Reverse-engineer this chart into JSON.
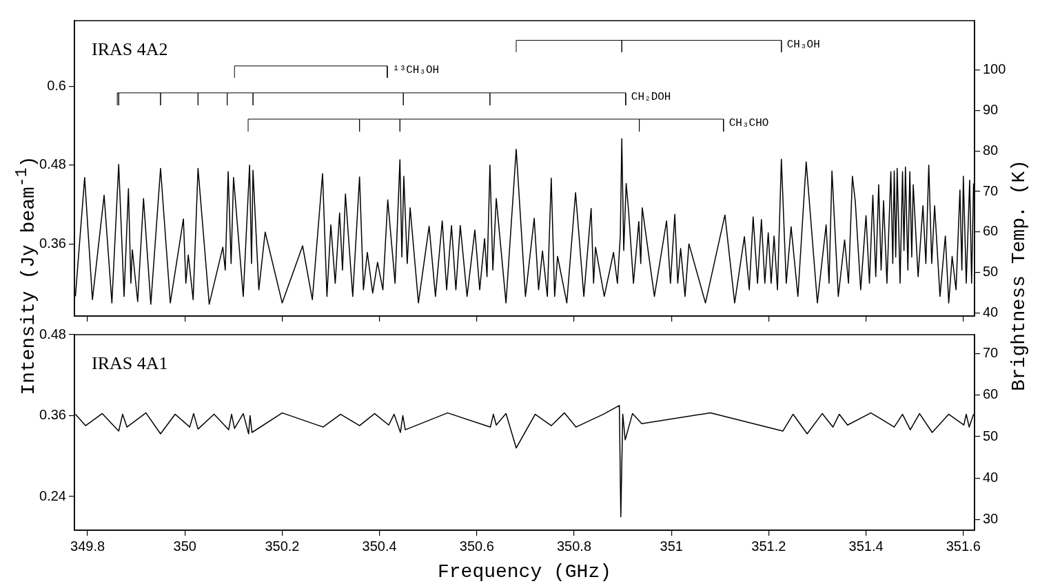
{
  "chart_data": [
    {
      "type": "line",
      "title": "IRAS 4A2",
      "xlim": [
        349.773,
        351.623
      ],
      "xticks": [
        349.8,
        350,
        350.2,
        350.4,
        350.6,
        350.8,
        351,
        351.2,
        351.4,
        351.6
      ],
      "ylim": [
        0.25,
        0.7
      ],
      "yticks": [
        0.36,
        0.48,
        0.6
      ],
      "y2lim": [
        39.2,
        112.2
      ],
      "y2ticks": [
        40,
        50,
        60,
        70,
        80,
        90,
        100
      ],
      "tick_labels": "y",
      "series": [
        {
          "color": "#000000",
          "x": [
            349.775,
            349.794,
            349.81,
            349.834,
            349.85,
            349.864,
            349.875,
            349.884,
            349.889,
            349.892,
            349.903,
            349.915,
            349.93,
            349.95,
            349.97,
            349.997,
            350.002,
            350.007,
            350.017,
            350.027,
            350.05,
            350.078,
            350.083,
            350.089,
            350.095,
            350.1,
            350.12,
            350.133,
            350.137,
            350.14,
            350.152,
            350.165,
            350.2,
            350.242,
            350.262,
            350.283,
            350.292,
            350.3,
            350.309,
            350.318,
            350.324,
            350.33,
            350.345,
            350.359,
            350.367,
            350.375,
            350.386,
            350.396,
            350.407,
            350.417,
            350.432,
            350.442,
            350.446,
            350.45,
            350.457,
            350.463,
            350.48,
            350.502,
            350.515,
            350.529,
            350.538,
            350.548,
            350.557,
            350.566,
            350.58,
            350.596,
            350.606,
            350.616,
            350.621,
            350.627,
            350.633,
            350.64,
            350.66,
            350.681,
            350.7,
            350.718,
            350.727,
            350.735,
            350.745,
            350.753,
            350.76,
            350.766,
            350.785,
            350.803,
            350.82,
            350.835,
            350.84,
            350.844,
            350.862,
            350.881,
            350.889,
            350.895,
            350.898,
            350.902,
            350.907,
            350.912,
            350.922,
            350.933,
            350.937,
            350.94,
            350.965,
            350.99,
            350.998,
            351.007,
            351.013,
            351.019,
            351.028,
            351.036,
            351.07,
            351.11,
            351.13,
            351.15,
            351.16,
            351.168,
            351.177,
            351.185,
            351.192,
            351.199,
            351.205,
            351.211,
            351.218,
            351.226,
            351.236,
            351.246,
            351.26,
            351.277,
            351.3,
            351.318,
            351.324,
            351.33,
            351.343,
            351.356,
            351.364,
            351.372,
            351.378,
            351.389,
            351.4,
            351.407,
            351.414,
            351.42,
            351.426,
            351.431,
            351.436,
            351.443,
            351.451,
            351.455,
            351.458,
            351.461,
            351.464,
            351.47,
            351.475,
            351.478,
            351.481,
            351.486,
            351.49,
            351.494,
            351.497,
            351.507,
            351.517,
            351.523,
            351.529,
            351.535,
            351.541,
            351.552,
            351.563,
            351.57,
            351.577,
            351.585,
            351.593,
            351.597,
            351.6,
            351.606,
            351.613,
            351.617,
            351.621
          ],
          "values": [
            0.28,
            0.461,
            0.275,
            0.434,
            0.27,
            0.481,
            0.28,
            0.444,
            0.3,
            0.351,
            0.272,
            0.429,
            0.268,
            0.475,
            0.27,
            0.398,
            0.3,
            0.343,
            0.275,
            0.475,
            0.268,
            0.355,
            0.32,
            0.47,
            0.33,
            0.461,
            0.28,
            0.48,
            0.33,
            0.472,
            0.29,
            0.378,
            0.27,
            0.357,
            0.275,
            0.467,
            0.28,
            0.389,
            0.3,
            0.407,
            0.32,
            0.436,
            0.28,
            0.462,
            0.29,
            0.347,
            0.285,
            0.332,
            0.29,
            0.427,
            0.3,
            0.488,
            0.34,
            0.463,
            0.33,
            0.415,
            0.27,
            0.387,
            0.28,
            0.395,
            0.29,
            0.388,
            0.29,
            0.388,
            0.28,
            0.381,
            0.29,
            0.368,
            0.31,
            0.48,
            0.32,
            0.429,
            0.27,
            0.504,
            0.28,
            0.399,
            0.29,
            0.349,
            0.28,
            0.46,
            0.28,
            0.341,
            0.27,
            0.438,
            0.28,
            0.414,
            0.3,
            0.355,
            0.28,
            0.347,
            0.3,
            0.373,
            0.52,
            0.35,
            0.452,
            0.41,
            0.3,
            0.394,
            0.33,
            0.415,
            0.28,
            0.395,
            0.3,
            0.405,
            0.3,
            0.353,
            0.28,
            0.36,
            0.27,
            0.404,
            0.27,
            0.371,
            0.29,
            0.401,
            0.3,
            0.397,
            0.3,
            0.377,
            0.3,
            0.372,
            0.29,
            0.489,
            0.3,
            0.386,
            0.28,
            0.485,
            0.27,
            0.389,
            0.3,
            0.471,
            0.28,
            0.366,
            0.3,
            0.463,
            0.424,
            0.29,
            0.403,
            0.3,
            0.434,
            0.31,
            0.45,
            0.32,
            0.426,
            0.3,
            0.47,
            0.33,
            0.471,
            0.34,
            0.475,
            0.3,
            0.47,
            0.35,
            0.477,
            0.32,
            0.47,
            0.34,
            0.45,
            0.31,
            0.418,
            0.33,
            0.48,
            0.33,
            0.418,
            0.28,
            0.372,
            0.27,
            0.341,
            0.29,
            0.442,
            0.32,
            0.463,
            0.3,
            0.457,
            0.3,
            0.452
          ]
        },
        {
          "type": "line",
          "name": "CH₃OH",
          "color": "#000000",
          "x": [
            350.681,
            350.681,
            350.898,
            350.898,
            350.898,
            351.226,
            351.226
          ],
          "values": [
            0.652,
            0.67,
            0.67,
            0.652,
            0.67,
            0.67,
            0.652
          ]
        },
        {
          "type": "line",
          "name": "¹³CH₃OH",
          "color": "#000000",
          "x": [
            350.102,
            350.102,
            350.416,
            350.416
          ],
          "values": [
            0.613,
            0.631,
            0.631,
            0.613
          ]
        },
        {
          "type": "line",
          "name": "CH₂DOH",
          "color": "#000000",
          "x": [
            349.861,
            349.861,
            349.864,
            349.864,
            349.864,
            349.95,
            349.95,
            349.95,
            350.027,
            350.027,
            350.027,
            350.087,
            350.087,
            350.087,
            350.14,
            350.14,
            350.14,
            350.449,
            350.449,
            350.449,
            350.627,
            350.627,
            350.627,
            350.906,
            350.906
          ],
          "values": [
            0.571,
            0.59,
            0.59,
            0.571,
            0.59,
            0.59,
            0.571,
            0.59,
            0.59,
            0.571,
            0.59,
            0.59,
            0.571,
            0.59,
            0.59,
            0.571,
            0.59,
            0.59,
            0.571,
            0.59,
            0.59,
            0.571,
            0.59,
            0.59,
            0.571
          ]
        },
        {
          "type": "line",
          "name": "CH₃CHO",
          "color": "#000000",
          "x": [
            350.13,
            350.13,
            350.359,
            350.359,
            350.359,
            350.442,
            350.442,
            350.442,
            350.934,
            350.934,
            350.934,
            351.107,
            351.107
          ],
          "values": [
            0.531,
            0.55,
            0.55,
            0.531,
            0.55,
            0.55,
            0.531,
            0.55,
            0.55,
            0.531,
            0.55,
            0.55,
            0.531
          ]
        }
      ]
    },
    {
      "type": "line",
      "title": "IRAS 4A1",
      "xlabel": "Frequency (GHz)",
      "ylabel": "Intensity (Jy beam$^{-1}$)",
      "y2label": "Brightness Temp. (K)",
      "xlim": [
        349.773,
        351.623
      ],
      "xticks": [
        349.8,
        350,
        350.2,
        350.4,
        350.6,
        350.8,
        351,
        351.2,
        351.4,
        351.6
      ],
      "ylim": [
        0.19,
        0.48
      ],
      "yticks": [
        0.24,
        0.36,
        0.48
      ],
      "y2lim": [
        27.5,
        74.5
      ],
      "y2ticks": [
        30,
        40,
        50,
        60,
        70
      ],
      "series": [
        {
          "color": "#000000",
          "x": [
            349.775,
            349.796,
            349.83,
            349.864,
            349.872,
            349.881,
            349.92,
            349.95,
            349.98,
            350.01,
            350.018,
            350.027,
            350.06,
            350.09,
            350.096,
            350.102,
            350.12,
            350.131,
            350.134,
            350.138,
            350.2,
            350.284,
            350.32,
            350.359,
            350.39,
            350.419,
            350.43,
            350.443,
            350.448,
            350.453,
            350.54,
            350.628,
            350.634,
            350.64,
            350.66,
            350.681,
            350.72,
            350.753,
            350.78,
            350.804,
            350.86,
            350.893,
            350.896,
            350.9,
            350.905,
            350.92,
            350.939,
            351.08,
            351.229,
            351.25,
            351.279,
            351.31,
            351.332,
            351.345,
            351.362,
            351.41,
            351.458,
            351.475,
            351.491,
            351.51,
            351.536,
            351.57,
            351.601,
            351.606,
            351.612,
            351.621
          ],
          "values": [
            0.362,
            0.345,
            0.363,
            0.337,
            0.362,
            0.343,
            0.364,
            0.333,
            0.362,
            0.343,
            0.363,
            0.34,
            0.362,
            0.339,
            0.362,
            0.341,
            0.363,
            0.333,
            0.36,
            0.335,
            0.364,
            0.343,
            0.362,
            0.345,
            0.363,
            0.346,
            0.362,
            0.335,
            0.36,
            0.339,
            0.364,
            0.343,
            0.362,
            0.346,
            0.363,
            0.312,
            0.362,
            0.345,
            0.364,
            0.343,
            0.362,
            0.375,
            0.21,
            0.362,
            0.324,
            0.363,
            0.348,
            0.364,
            0.337,
            0.362,
            0.333,
            0.363,
            0.343,
            0.362,
            0.346,
            0.364,
            0.343,
            0.362,
            0.339,
            0.363,
            0.335,
            0.362,
            0.346,
            0.362,
            0.343,
            0.362
          ]
        }
      ]
    }
  ]
}
